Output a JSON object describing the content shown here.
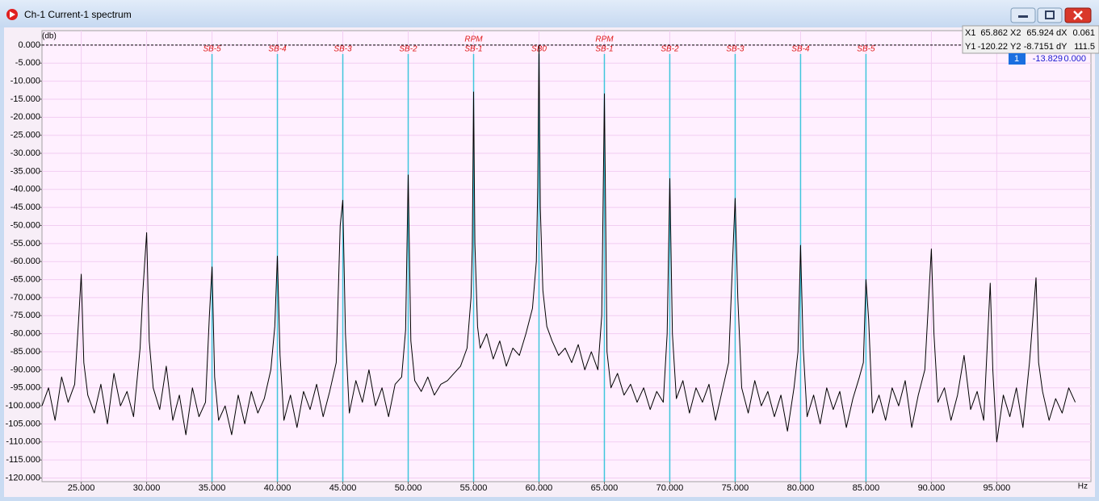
{
  "window": {
    "title": "Ch-1 Current-1 spectrum"
  },
  "cursor_table": {
    "rows": [
      [
        "X1",
        "65.862",
        "X2",
        "65.924",
        "dX",
        "0.061"
      ],
      [
        "Y1",
        "-120.22",
        "Y2",
        "-8.7151",
        "dY",
        "111.5"
      ]
    ],
    "active": [
      "1",
      "-13.829",
      "0.000"
    ]
  },
  "chart_data": {
    "type": "line",
    "y_unit": "(db)",
    "x_unit": "Hz",
    "color": "#000000",
    "grid": true,
    "xlim": [
      22,
      102.2
    ],
    "ylim": [
      -121,
      4
    ],
    "xticks": [
      {
        "value": 25,
        "label": "25.000"
      },
      {
        "value": 30,
        "label": "30.000"
      },
      {
        "value": 35,
        "label": "35.000"
      },
      {
        "value": 40,
        "label": "40.000"
      },
      {
        "value": 45,
        "label": "45.000"
      },
      {
        "value": 50,
        "label": "50.000"
      },
      {
        "value": 55,
        "label": "55.000"
      },
      {
        "value": 60,
        "label": "60.000"
      },
      {
        "value": 65,
        "label": "65.000"
      },
      {
        "value": 70,
        "label": "70.000"
      },
      {
        "value": 75,
        "label": "75.000"
      },
      {
        "value": 80,
        "label": "80.000"
      },
      {
        "value": 85,
        "label": "85.000"
      },
      {
        "value": 90,
        "label": "90.000"
      },
      {
        "value": 95,
        "label": "95.000"
      }
    ],
    "yticks": [
      {
        "value": 0,
        "label": "0.000"
      },
      {
        "value": -5,
        "label": "-5.000"
      },
      {
        "value": -10,
        "label": "-10.000"
      },
      {
        "value": -15,
        "label": "-15.000"
      },
      {
        "value": -20,
        "label": "-20.000"
      },
      {
        "value": -25,
        "label": "-25.000"
      },
      {
        "value": -30,
        "label": "-30.000"
      },
      {
        "value": -35,
        "label": "-35.000"
      },
      {
        "value": -40,
        "label": "-40.000"
      },
      {
        "value": -45,
        "label": "-45.000"
      },
      {
        "value": -50,
        "label": "-50.000"
      },
      {
        "value": -55,
        "label": "-55.000"
      },
      {
        "value": -60,
        "label": "-60.000"
      },
      {
        "value": -65,
        "label": "-65.000"
      },
      {
        "value": -70,
        "label": "-70.000"
      },
      {
        "value": -75,
        "label": "-75.000"
      },
      {
        "value": -80,
        "label": "-80.000"
      },
      {
        "value": -85,
        "label": "-85.000"
      },
      {
        "value": -90,
        "label": "-90.000"
      },
      {
        "value": -95,
        "label": "-95.000"
      },
      {
        "value": -100,
        "label": "-100.000"
      },
      {
        "value": -105,
        "label": "-105.000"
      },
      {
        "value": -110,
        "label": "-110.000"
      },
      {
        "value": -115,
        "label": "-115.000"
      },
      {
        "value": -120,
        "label": "-120.000"
      }
    ],
    "markers": [
      {
        "x": 35,
        "label": "SB-5"
      },
      {
        "x": 40,
        "label": "SB-4"
      },
      {
        "x": 45,
        "label": "SB-3"
      },
      {
        "x": 50,
        "label": "SB-2"
      },
      {
        "x": 55,
        "label": "SB-1",
        "top_label": "RPM"
      },
      {
        "x": 60,
        "label": "SB0"
      },
      {
        "x": 65,
        "label": "SB-1",
        "top_label": "RPM"
      },
      {
        "x": 70,
        "label": "SB-2"
      },
      {
        "x": 75,
        "label": "SB-3"
      },
      {
        "x": 80,
        "label": "SB-4"
      },
      {
        "x": 85,
        "label": "SB-5"
      }
    ],
    "x": [
      22,
      22.5,
      23,
      23.5,
      24,
      24.5,
      24.8,
      25,
      25.2,
      25.5,
      26,
      26.5,
      27,
      27.5,
      28,
      28.5,
      29,
      29.5,
      29.7,
      30,
      30.2,
      30.5,
      31,
      31.5,
      32,
      32.5,
      33,
      33.5,
      34,
      34.5,
      34.8,
      35,
      35.2,
      35.5,
      36,
      36.5,
      37,
      37.5,
      38,
      38.5,
      39,
      39.5,
      39.8,
      40,
      40.2,
      40.5,
      41,
      41.5,
      42,
      42.5,
      43,
      43.5,
      44,
      44.5,
      44.8,
      45,
      45.2,
      45.5,
      46,
      46.5,
      47,
      47.5,
      48,
      48.5,
      49,
      49.5,
      49.8,
      50,
      50.2,
      50.5,
      51,
      51.5,
      52,
      52.5,
      53,
      53.5,
      54,
      54.5,
      54.8,
      54.9,
      55,
      55.1,
      55.3,
      55.5,
      56,
      56.5,
      57,
      57.5,
      58,
      58.5,
      59,
      59.5,
      59.8,
      59.9,
      60,
      60.1,
      60.3,
      60.6,
      61,
      61.5,
      62,
      62.5,
      63,
      63.5,
      64,
      64.5,
      64.8,
      65,
      65.2,
      65.5,
      66,
      66.5,
      67,
      67.5,
      68,
      68.5,
      69,
      69.5,
      69.8,
      70,
      70.2,
      70.5,
      71,
      71.5,
      72,
      72.5,
      73,
      73.5,
      74,
      74.5,
      74.8,
      75,
      75.2,
      75.5,
      76,
      76.5,
      77,
      77.5,
      78,
      78.5,
      79,
      79.5,
      79.8,
      80,
      80.2,
      80.5,
      81,
      81.5,
      82,
      82.5,
      83,
      83.5,
      84,
      84.5,
      84.8,
      85,
      85.2,
      85.5,
      86,
      86.5,
      87,
      87.5,
      88,
      88.5,
      89,
      89.5,
      90,
      90.2,
      90.5,
      91,
      91.5,
      92,
      92.5,
      93,
      93.5,
      94,
      94.5,
      94.7,
      95,
      95.5,
      96,
      96.5,
      97,
      97.5,
      98,
      98.2,
      98.5,
      99,
      99.5,
      100,
      100.5,
      101
    ],
    "values": [
      -100,
      -95,
      -104,
      -92,
      -99,
      -94,
      -76,
      -63.5,
      -88,
      -97,
      -102,
      -94,
      -105,
      -91,
      -100,
      -96,
      -103,
      -84,
      -69,
      -52,
      -82,
      -95,
      -101,
      -89,
      -104,
      -97,
      -108,
      -95,
      -103,
      -99,
      -75,
      -61.5,
      -92,
      -104,
      -100,
      -108,
      -97,
      -105,
      -96,
      -102,
      -98,
      -90,
      -78,
      -58.5,
      -86,
      -104,
      -97,
      -106,
      -96,
      -101,
      -94,
      -103,
      -96,
      -88,
      -50,
      -43,
      -80,
      -102,
      -93,
      -99,
      -90,
      -100,
      -95,
      -103,
      -94,
      -92,
      -79,
      -36,
      -82,
      -93,
      -96,
      -92,
      -97,
      -94,
      -93,
      -91,
      -89,
      -84,
      -70,
      -56,
      -13,
      -55,
      -78,
      -84,
      -80,
      -87,
      -82,
      -89,
      -84,
      -86,
      -80,
      -73,
      -60,
      -40,
      0,
      -45,
      -68,
      -78,
      -82,
      -86,
      -84,
      -88,
      -83,
      -90,
      -85,
      -90,
      -75,
      -13.5,
      -85,
      -95,
      -91,
      -97,
      -94,
      -99,
      -95,
      -101,
      -96,
      -99,
      -80,
      -37,
      -80,
      -98,
      -93,
      -102,
      -95,
      -99,
      -94,
      -104,
      -96,
      -88,
      -60,
      -42.5,
      -70,
      -95,
      -102,
      -93,
      -100,
      -96,
      -103,
      -97,
      -107,
      -95,
      -85,
      -55.5,
      -84,
      -103,
      -97,
      -105,
      -95,
      -101,
      -96,
      -106,
      -98,
      -92,
      -88,
      -65,
      -76,
      -102,
      -97,
      -104,
      -95,
      -100,
      -93,
      -106,
      -97,
      -90,
      -56.5,
      -80,
      -99,
      -95,
      -104,
      -97,
      -86,
      -101,
      -96,
      -104,
      -66,
      -90,
      -110,
      -97,
      -103,
      -95,
      -106,
      -88,
      -64.5,
      -88,
      -96,
      -104,
      -98,
      -102,
      -95,
      -99
    ]
  }
}
